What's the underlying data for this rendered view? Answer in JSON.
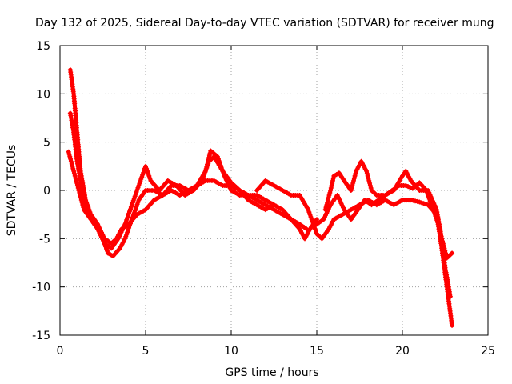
{
  "chart_data": {
    "type": "scatter",
    "title": "Day 132 of 2025, Sidereal Day-to-day VTEC variation (SDTVAR) for receiver mung",
    "xlabel": "GPS time / hours",
    "ylabel": "SDTVAR / TECUs",
    "xlim": [
      0,
      25
    ],
    "ylim": [
      -15,
      15
    ],
    "x_ticks": [
      0,
      5,
      10,
      15,
      20,
      25
    ],
    "y_ticks": [
      -15,
      -10,
      -5,
      0,
      5,
      10,
      15
    ],
    "x_tick_labels": [
      "0",
      "5",
      "10",
      "15",
      "20",
      "25"
    ],
    "y_tick_labels": [
      "-15",
      "-10",
      "-5",
      "0",
      "5",
      "10",
      "15"
    ],
    "grid": true,
    "marker": "+",
    "color": "#ff0000",
    "series": [
      {
        "name": "track-1",
        "points": [
          [
            0.6,
            12.5
          ],
          [
            0.8,
            10
          ],
          [
            1,
            6
          ],
          [
            1.2,
            2
          ],
          [
            1.5,
            -1
          ],
          [
            1.8,
            -2.5
          ],
          [
            2.2,
            -3.5
          ],
          [
            2.6,
            -5
          ],
          [
            3,
            -5.5
          ],
          [
            3.3,
            -5
          ],
          [
            3.6,
            -4
          ],
          [
            4,
            -3.5
          ],
          [
            4.5,
            -2.5
          ],
          [
            5,
            -2
          ],
          [
            5.5,
            -1
          ],
          [
            6,
            -0.5
          ],
          [
            6.5,
            0
          ],
          [
            7,
            -0.5
          ],
          [
            7.5,
            0
          ],
          [
            8,
            0.5
          ],
          [
            8.5,
            1
          ],
          [
            9,
            1
          ],
          [
            9.5,
            0.5
          ],
          [
            10,
            0.5
          ],
          [
            10.5,
            0
          ],
          [
            11,
            -0.5
          ],
          [
            11.5,
            -1
          ],
          [
            12,
            -1.5
          ],
          [
            12.5,
            -2
          ],
          [
            13,
            -2.5
          ],
          [
            13.5,
            -3
          ],
          [
            14,
            -3.5
          ],
          [
            14.4,
            -4
          ]
        ]
      },
      {
        "name": "track-2",
        "points": [
          [
            0.6,
            8
          ],
          [
            0.8,
            6
          ],
          [
            1,
            3
          ],
          [
            1.3,
            0
          ],
          [
            1.6,
            -2
          ],
          [
            2,
            -3
          ],
          [
            2.4,
            -4.5
          ],
          [
            2.8,
            -6.5
          ],
          [
            3.1,
            -6.8
          ],
          [
            3.5,
            -6
          ],
          [
            3.8,
            -5
          ],
          [
            4.2,
            -3
          ],
          [
            4.6,
            -1
          ],
          [
            5,
            0
          ],
          [
            5.5,
            0
          ],
          [
            6,
            -0.5
          ],
          [
            6.5,
            0.5
          ],
          [
            7,
            0.5
          ],
          [
            7.5,
            0
          ],
          [
            8,
            0.5
          ],
          [
            8.5,
            2
          ],
          [
            8.8,
            4.1
          ],
          [
            9.2,
            3.5
          ],
          [
            9.6,
            1.5
          ],
          [
            10,
            0
          ],
          [
            10.5,
            -0.5
          ],
          [
            11,
            -0.5
          ],
          [
            11.5,
            -0.5
          ],
          [
            12,
            -1
          ],
          [
            12.5,
            -1.5
          ],
          [
            13,
            -2
          ],
          [
            13.5,
            -3
          ],
          [
            14,
            -4
          ],
          [
            14.3,
            -5
          ],
          [
            14.6,
            -4
          ],
          [
            15,
            -3
          ]
        ]
      },
      {
        "name": "track-3",
        "points": [
          [
            0.5,
            4
          ],
          [
            0.8,
            2
          ],
          [
            1.1,
            0
          ],
          [
            1.4,
            -2
          ],
          [
            1.8,
            -3
          ],
          [
            2.2,
            -4
          ],
          [
            2.6,
            -5.5
          ],
          [
            3,
            -6
          ],
          [
            3.4,
            -5
          ],
          [
            3.8,
            -3.5
          ],
          [
            4.2,
            -1.5
          ],
          [
            4.6,
            0.5
          ],
          [
            5,
            2.5
          ],
          [
            5.3,
            1
          ],
          [
            5.8,
            0
          ],
          [
            6.3,
            1
          ],
          [
            6.8,
            0.5
          ],
          [
            7.3,
            -0.5
          ],
          [
            7.8,
            0
          ],
          [
            8.3,
            1
          ],
          [
            8.7,
            3
          ],
          [
            9,
            3.5
          ],
          [
            9.5,
            2
          ],
          [
            10,
            0.8
          ],
          [
            10.5,
            0
          ],
          [
            11,
            -1
          ],
          [
            11.5,
            -1.5
          ],
          [
            12,
            -2
          ],
          [
            12.5,
            -1.5
          ]
        ]
      },
      {
        "name": "track-4",
        "points": [
          [
            11.5,
            0
          ],
          [
            12,
            1
          ],
          [
            12.5,
            0.5
          ],
          [
            13,
            0
          ],
          [
            13.5,
            -0.5
          ],
          [
            14,
            -0.5
          ],
          [
            14.5,
            -2
          ],
          [
            14.8,
            -3.5
          ],
          [
            15,
            -4.5
          ],
          [
            15.3,
            -5
          ],
          [
            15.7,
            -4
          ],
          [
            16,
            -3
          ],
          [
            16.5,
            -2.5
          ],
          [
            17,
            -2
          ],
          [
            17.5,
            -1.5
          ],
          [
            18,
            -1
          ],
          [
            18.5,
            -1.5
          ],
          [
            19,
            -1
          ],
          [
            19.5,
            -1.5
          ],
          [
            20,
            -1
          ],
          [
            20.5,
            -1
          ],
          [
            21,
            -1.2
          ],
          [
            21.5,
            -1.5
          ],
          [
            22,
            -2.5
          ],
          [
            22.3,
            -6
          ],
          [
            22.6,
            -10
          ],
          [
            22.9,
            -14
          ]
        ]
      },
      {
        "name": "track-5",
        "points": [
          [
            15.5,
            -2
          ],
          [
            15.8,
            0
          ],
          [
            16,
            1.5
          ],
          [
            16.3,
            1.8
          ],
          [
            16.6,
            1
          ],
          [
            17,
            0
          ],
          [
            17.3,
            2
          ],
          [
            17.6,
            3
          ],
          [
            17.9,
            2
          ],
          [
            18.2,
            0
          ],
          [
            18.5,
            -0.5
          ],
          [
            19,
            -0.5
          ],
          [
            19.5,
            0
          ],
          [
            20,
            1.5
          ],
          [
            20.2,
            2
          ],
          [
            20.5,
            1
          ],
          [
            21,
            0
          ],
          [
            21.5,
            0
          ],
          [
            22,
            -2
          ],
          [
            22.3,
            -5
          ],
          [
            22.6,
            -7
          ],
          [
            22.9,
            -6.5
          ]
        ]
      },
      {
        "name": "track-6",
        "points": [
          [
            15,
            -3.5
          ],
          [
            15.4,
            -3
          ],
          [
            15.8,
            -1.5
          ],
          [
            16.2,
            -0.5
          ],
          [
            16.6,
            -2
          ],
          [
            17,
            -3
          ],
          [
            17.4,
            -2
          ],
          [
            17.8,
            -1
          ],
          [
            18.2,
            -1.5
          ],
          [
            18.6,
            -1
          ],
          [
            19,
            -0.5
          ],
          [
            19.4,
            0
          ],
          [
            19.8,
            0.5
          ],
          [
            20.2,
            0.5
          ],
          [
            20.6,
            0.2
          ],
          [
            21,
            0.8
          ],
          [
            21.4,
            0
          ],
          [
            21.8,
            -2
          ],
          [
            22.2,
            -4
          ],
          [
            22.5,
            -8
          ],
          [
            22.8,
            -11
          ]
        ]
      }
    ]
  }
}
